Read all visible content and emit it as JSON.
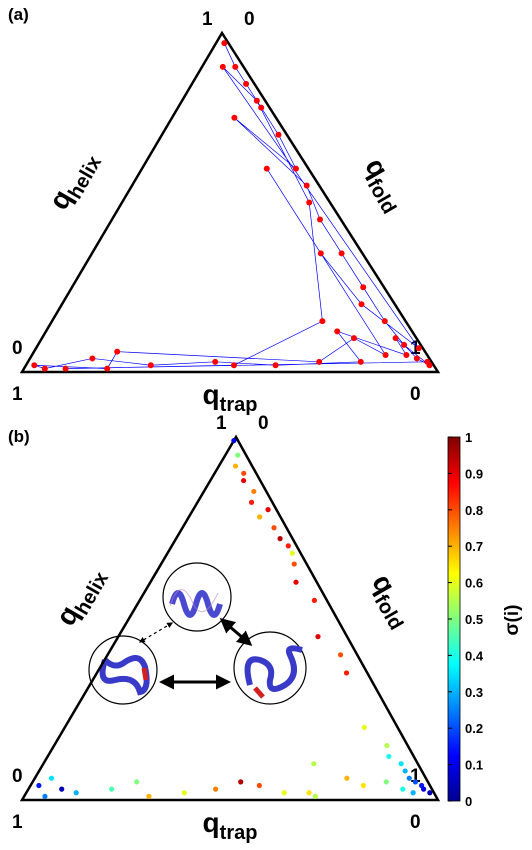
{
  "chart_data": [
    {
      "type": "ternary-network",
      "panel_label": "(a)",
      "line_color": "#0000ff",
      "point_color": "#ff0000",
      "axes": [
        {
          "symbol": "q",
          "subscript": "helix",
          "ends": [
            0,
            1
          ]
        },
        {
          "symbol": "q",
          "subscript": "fold",
          "ends": [
            0,
            1
          ]
        },
        {
          "symbol": "q",
          "subscript": "trap",
          "ends": [
            1,
            0
          ]
        }
      ],
      "points": {
        "q_helix": [
          0.97,
          0.9,
          0.85,
          0.78,
          0.7,
          0.6,
          0.75,
          0.55,
          0.45,
          0.35,
          0.25,
          0.15,
          0.08,
          0.04,
          0.02,
          0.1,
          0.05,
          0.12,
          0.03,
          0.02,
          0.03,
          0.02,
          0.04,
          0.01,
          0.02,
          0.01,
          0.06,
          0.03,
          0.1,
          0.05,
          0.6,
          0.35,
          0.2,
          0.07,
          0.9,
          0.8,
          0.5,
          0.15,
          0.02,
          0.01,
          0.03
        ],
        "q_fold": [
          0.02,
          0.08,
          0.13,
          0.2,
          0.28,
          0.37,
          0.15,
          0.42,
          0.5,
          0.6,
          0.7,
          0.8,
          0.88,
          0.93,
          0.97,
          0.85,
          0.9,
          0.7,
          0.8,
          0.6,
          0.45,
          0.3,
          0.15,
          0.05,
          0.02,
          0.2,
          0.2,
          0.7,
          0.75,
          0.85,
          0.3,
          0.55,
          0.72,
          0.92,
          0.05,
          0.18,
          0.45,
          0.65,
          0.5,
          0.1,
          0.96
        ]
      }
    },
    {
      "type": "ternary-scatter",
      "panel_label": "(b)",
      "axes": [
        {
          "symbol": "q",
          "subscript": "helix",
          "ends": [
            0,
            1
          ]
        },
        {
          "symbol": "q",
          "subscript": "fold",
          "ends": [
            0,
            1
          ]
        },
        {
          "symbol": "q",
          "subscript": "trap",
          "ends": [
            1,
            0
          ]
        }
      ],
      "colorbar": {
        "label": "σ(i)",
        "lim": [
          0,
          1
        ],
        "ticks": [
          0,
          0.1,
          0.2,
          0.3,
          0.4,
          0.5,
          0.6,
          0.7,
          0.8,
          0.9,
          1
        ]
      },
      "points": {
        "q_helix": [
          0.99,
          0.95,
          0.92,
          0.9,
          0.88,
          0.85,
          0.82,
          0.8,
          0.78,
          0.75,
          0.72,
          0.7,
          0.68,
          0.65,
          0.6,
          0.55,
          0.45,
          0.4,
          0.35,
          0.2,
          0.15,
          0.12,
          0.1,
          0.08,
          0.06,
          0.05,
          0.04,
          0.03,
          0.02,
          0.02,
          0.03,
          0.05,
          0.04,
          0.06,
          0.01,
          0.02,
          0.04,
          0.03,
          0.02,
          0.01,
          0.05,
          0.03,
          0.02,
          0.01,
          0.04,
          0.06,
          0.03,
          0.02,
          0.05,
          0.1
        ],
        "q_fold": [
          0.0,
          0.03,
          0.04,
          0.07,
          0.08,
          0.12,
          0.13,
          0.18,
          0.17,
          0.22,
          0.25,
          0.28,
          0.3,
          0.32,
          0.35,
          0.42,
          0.48,
          0.56,
          0.6,
          0.72,
          0.8,
          0.82,
          0.86,
          0.88,
          0.9,
          0.92,
          0.94,
          0.95,
          0.97,
          0.93,
          0.9,
          0.85,
          0.8,
          0.75,
          0.7,
          0.62,
          0.55,
          0.45,
          0.38,
          0.3,
          0.25,
          0.2,
          0.12,
          0.05,
          0.02,
          0.04,
          0.08,
          0.68,
          0.5,
          0.65
        ],
        "sigma": [
          0.1,
          0.5,
          0.7,
          0.8,
          0.9,
          0.75,
          0.85,
          0.9,
          0.7,
          0.8,
          0.95,
          0.85,
          0.6,
          0.8,
          0.9,
          0.85,
          0.9,
          0.8,
          0.85,
          0.6,
          0.55,
          0.4,
          0.35,
          0.3,
          0.25,
          0.2,
          0.15,
          0.1,
          0.05,
          0.3,
          0.4,
          0.5,
          0.65,
          0.7,
          0.55,
          0.6,
          0.8,
          0.75,
          0.6,
          0.7,
          0.5,
          0.45,
          0.3,
          0.25,
          0.15,
          0.35,
          0.05,
          0.65,
          0.95,
          0.55
        ]
      }
    }
  ]
}
